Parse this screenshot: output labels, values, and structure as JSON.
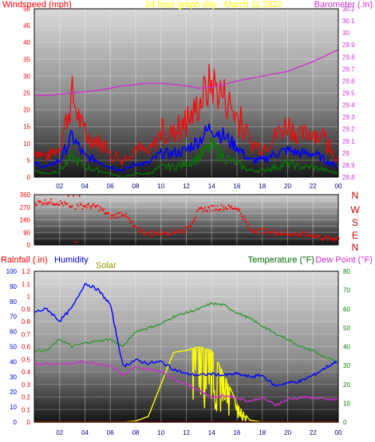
{
  "header": {
    "left_label": "Windspeed (mph)",
    "center_label": "24 hour graph day - March 11 2023",
    "right_label": "Barometer (.in)"
  },
  "direction_panel": {
    "compass_labels": [
      "N",
      "W",
      "S",
      "E",
      "N"
    ]
  },
  "bottom_header": {
    "rainfall_label": "Rainfall (.in)",
    "humidity_label": "Humidity",
    "solar_label": "Solar",
    "temperature_label": "Temperature (°F)",
    "dewpoint_label": "Dew Point (°F)"
  },
  "colors": {
    "windspeed_max": "#ff0000",
    "windspeed_avg": "#0000ff",
    "windspeed_min": "#008000",
    "barometer": "#cc33cc",
    "direction": "#ff0000",
    "humidity": "#0000ff",
    "temperature": "#339933",
    "dewpoint": "#cc33cc",
    "solar": "#ffff00",
    "rainfall": "#ff0000"
  },
  "chart_data": [
    {
      "type": "line",
      "title": "24 hour graph day - March 11 2023",
      "xlabel": "",
      "ylabel": "Windspeed (mph)",
      "y2label": "Barometer (.in)",
      "x_ticks": [
        "02",
        "04",
        "06",
        "08",
        "10",
        "12",
        "14",
        "16",
        "18",
        "20",
        "22",
        "00"
      ],
      "ylim": [
        0,
        50
      ],
      "y_ticks": [
        0,
        5,
        10,
        15,
        20,
        25,
        30,
        35,
        40,
        45,
        50
      ],
      "y2lim": [
        28.8,
        30.2
      ],
      "y2_ticks": [
        "28.8",
        "28.9",
        "29",
        "29.1",
        "29.2",
        "29.3",
        "29.4",
        "29.5",
        "29.6",
        "29.7",
        "29.8",
        "29.9",
        "30",
        "30.1",
        "30.2"
      ],
      "x": [
        0,
        1,
        2,
        3,
        4,
        5,
        6,
        7,
        8,
        9,
        10,
        11,
        12,
        13,
        14,
        15,
        16,
        17,
        18,
        19,
        20,
        21,
        22,
        23,
        24
      ],
      "series": [
        {
          "name": "Windspeed max",
          "values": [
            8,
            6,
            9,
            24,
            12,
            11,
            6,
            5,
            9,
            7,
            13,
            13,
            15,
            22,
            28,
            24,
            18,
            10,
            9,
            12,
            16,
            12,
            14,
            10,
            5
          ]
        },
        {
          "name": "Windspeed avg",
          "values": [
            4,
            3,
            5,
            12,
            6,
            5,
            3,
            2,
            4,
            4,
            7,
            7,
            8,
            11,
            15,
            12,
            9,
            5,
            5,
            7,
            8,
            7,
            7,
            5,
            3
          ]
        },
        {
          "name": "Windspeed min",
          "values": [
            2,
            1,
            2,
            6,
            3,
            2,
            1,
            0,
            1,
            1,
            3,
            3,
            4,
            6,
            9,
            6,
            4,
            2,
            2,
            3,
            4,
            3,
            3,
            2,
            1
          ]
        },
        {
          "name": "Barometer",
          "values": [
            29.48,
            29.48,
            29.49,
            29.5,
            29.51,
            29.52,
            29.54,
            29.56,
            29.57,
            29.58,
            29.58,
            29.57,
            29.56,
            29.54,
            29.55,
            29.57,
            29.6,
            29.62,
            29.64,
            29.66,
            29.68,
            29.72,
            29.76,
            29.81,
            29.86
          ]
        }
      ]
    },
    {
      "type": "scatter",
      "title": "",
      "ylabel": "Wind direction",
      "x_ticks": [
        "02",
        "04",
        "06",
        "08",
        "10",
        "12",
        "14",
        "16",
        "18",
        "20",
        "22",
        "00"
      ],
      "ylim": [
        0,
        360
      ],
      "y_ticks": [
        0,
        45,
        90,
        135,
        180,
        225,
        270,
        315,
        360
      ],
      "y_tick_labels": [
        "0",
        "45",
        "90",
        "135",
        "180",
        "225",
        "270",
        "315",
        "360"
      ],
      "x": [
        0,
        1,
        2,
        3,
        4,
        5,
        6,
        7,
        8,
        9,
        10,
        11,
        12,
        13,
        14,
        15,
        16,
        17,
        18,
        19,
        20,
        21,
        22,
        23,
        24
      ],
      "series": [
        {
          "name": "Wind direction",
          "values": [
            300,
            310,
            300,
            275,
            280,
            270,
            200,
            230,
            110,
            80,
            90,
            95,
            110,
            250,
            265,
            270,
            265,
            110,
            100,
            90,
            80,
            75,
            70,
            45,
            50
          ]
        }
      ]
    },
    {
      "type": "line",
      "title": "",
      "ylabel": "Humidity",
      "y2label": "Temperature (°F)",
      "x_ticks": [
        "02",
        "04",
        "06",
        "08",
        "10",
        "12",
        "14",
        "16",
        "18",
        "20",
        "22",
        "00"
      ],
      "ylim": [
        0,
        100
      ],
      "y_ticks": [
        0,
        10,
        20,
        30,
        40,
        50,
        60,
        70,
        80,
        90,
        100
      ],
      "rain_lim": [
        0,
        1.2
      ],
      "rain_ticks": [
        "0",
        "0.1",
        "0.2",
        "0.3",
        "0.4",
        "0.5",
        "0.6",
        "0.7",
        "0.8",
        "0.9",
        "1",
        "1.1",
        "1.2"
      ],
      "y2lim": [
        0,
        80
      ],
      "y2_ticks": [
        0,
        10,
        20,
        30,
        40,
        50,
        60,
        70,
        80
      ],
      "x": [
        0,
        1,
        2,
        3,
        4,
        5,
        6,
        7,
        8,
        9,
        10,
        11,
        12,
        13,
        14,
        15,
        16,
        17,
        18,
        19,
        20,
        21,
        22,
        23,
        24
      ],
      "series": [
        {
          "name": "Humidity",
          "values": [
            73,
            75,
            67,
            76,
            92,
            88,
            78,
            37,
            41,
            39,
            40,
            35,
            32,
            31,
            32,
            31,
            32,
            30,
            31,
            24,
            26,
            27,
            31,
            36,
            41
          ]
        },
        {
          "name": "Temperature",
          "values": [
            38,
            38,
            44,
            40,
            42,
            43,
            44,
            40,
            48,
            50,
            52,
            56,
            58,
            60,
            63,
            62,
            58,
            55,
            51,
            47,
            44,
            40,
            38,
            34,
            32
          ]
        },
        {
          "name": "Dew Point",
          "values": [
            31,
            31,
            31,
            31,
            32,
            31,
            30,
            25,
            29,
            28,
            27,
            23,
            20,
            17,
            13,
            14,
            13,
            11,
            13,
            9,
            12,
            13,
            13,
            12,
            12
          ]
        },
        {
          "name": "Solar",
          "values": [
            0,
            0,
            0,
            0,
            0,
            0,
            0,
            0,
            0.5,
            3,
            20,
            37,
            38,
            40,
            38,
            25,
            10,
            1,
            0,
            0,
            0,
            0,
            0,
            0,
            0
          ]
        },
        {
          "name": "Rainfall",
          "values": [
            0,
            0,
            0,
            0,
            0,
            0,
            0,
            0,
            0,
            0,
            0,
            0,
            0,
            0,
            0,
            0,
            0,
            0,
            0,
            0,
            0,
            0,
            0,
            0,
            0
          ]
        }
      ]
    }
  ]
}
